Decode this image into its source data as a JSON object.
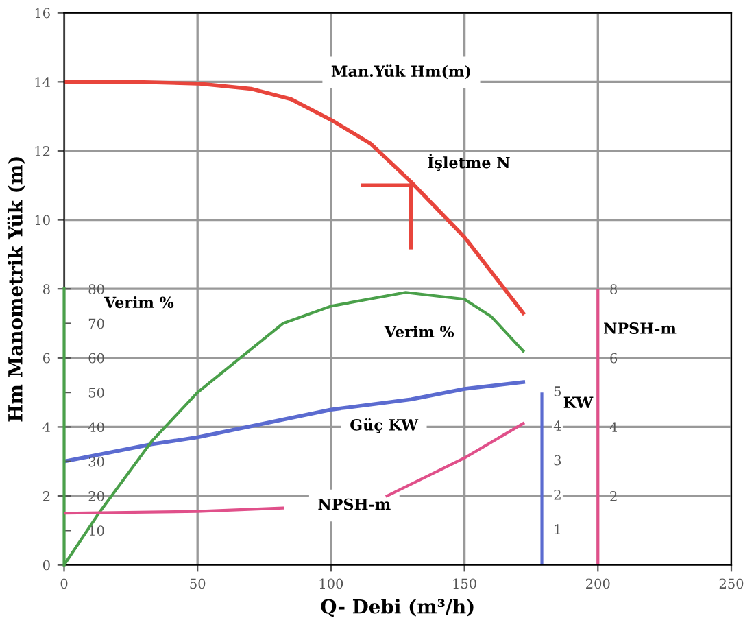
{
  "chart_data": {
    "type": "line",
    "xlabel": "Q- Debi (m³/h)",
    "ylabel": "Hm Manometrik Yük (m)",
    "xlim": [
      0,
      250
    ],
    "xticks": [
      0,
      50,
      100,
      150,
      200,
      250
    ],
    "ylim": [
      0,
      16
    ],
    "yticks": [
      0,
      2,
      4,
      6,
      8,
      10,
      12,
      14,
      16
    ],
    "y2lim": [
      0,
      160
    ],
    "y2ticks": [
      10,
      20,
      30,
      40,
      50,
      60,
      70,
      80
    ],
    "y3lim": [
      0,
      16
    ],
    "y3ticks": [
      2,
      4,
      6,
      8
    ],
    "ref_lines": [
      {
        "axis": "x",
        "value": 179,
        "color": "#5b6bd0"
      },
      {
        "axis": "x",
        "value": 200,
        "color": "#e0508a"
      }
    ],
    "grid": true,
    "marker": "none",
    "line_style": "solid",
    "series": [
      {
        "name": "Man.Yük Hm(m)",
        "color": "#e8453c",
        "x": [
          0,
          25,
          50,
          70,
          85,
          100,
          115,
          130,
          150,
          172
        ],
        "values": [
          14.0,
          14.0,
          13.95,
          13.8,
          13.5,
          12.9,
          12.2,
          11.1,
          9.5,
          7.3
        ]
      },
      {
        "color": "#e8453c",
        "x": [
          112,
          130
        ],
        "values": [
          11.0,
          11.0
        ]
      },
      {
        "color": "#e8453c",
        "x": [
          130,
          130
        ],
        "values": [
          11.0,
          9.2
        ]
      },
      {
        "name": "Verim %",
        "color": "#4aa04a",
        "axis": "y2",
        "x": [
          0,
          13,
          33,
          50,
          82,
          100,
          128,
          150,
          160,
          172
        ],
        "values": [
          0,
          15,
          36,
          50,
          70,
          75,
          79,
          77,
          72,
          62
        ]
      },
      {
        "name": "Güç KW",
        "color": "#5b6bd0",
        "x": [
          0,
          33,
          50,
          100,
          130,
          150,
          172
        ],
        "values": [
          3.0,
          3.5,
          3.7,
          4.5,
          4.8,
          5.1,
          5.3
        ]
      },
      {
        "name": "NPSH-m",
        "color": "#e0508a",
        "axis": "y3",
        "x": [
          0,
          50,
          82,
          102,
          121,
          150,
          172
        ],
        "values": [
          1.5,
          1.55,
          1.65,
          null,
          2.0,
          3.1,
          4.1
        ]
      }
    ],
    "annotations": [
      "İşletme N",
      "Verim %",
      "NPSH-m",
      "KW",
      {
        "text": "1",
        "y": 1
      },
      {
        "text": "2",
        "y": 2
      },
      {
        "text": "3",
        "y": 3
      },
      {
        "text": "4",
        "y": 4
      },
      {
        "text": "5",
        "y": 5
      }
    ]
  }
}
